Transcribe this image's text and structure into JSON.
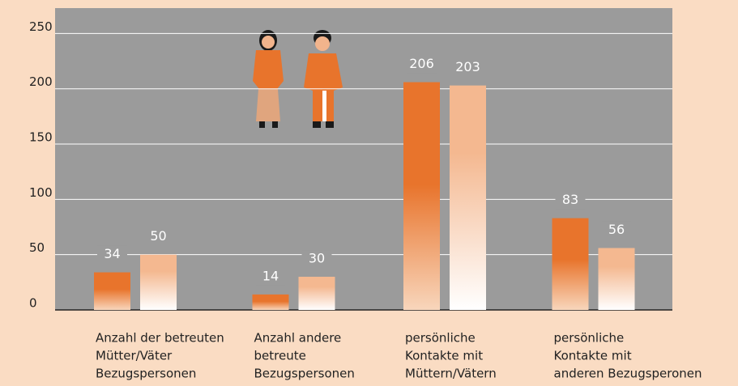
{
  "chart_data": {
    "type": "bar",
    "categories": [
      [
        "Anzahl der betreuten",
        "Mütter/Väter",
        "Bezugspersonen"
      ],
      [
        "Anzahl andere",
        "betreute",
        "Bezugspersonen"
      ],
      [
        "persönliche",
        "Kontakte mit",
        "Müttern/Vätern"
      ],
      [
        "persönliche",
        "Kontakte mit",
        "anderen Bezugsperonen"
      ]
    ],
    "series": [
      {
        "color": "#e8742c",
        "values": [
          34,
          14,
          206,
          83
        ]
      },
      {
        "color": "#f4b890",
        "values": [
          50,
          30,
          203,
          56
        ]
      }
    ],
    "ylim": [
      0,
      273
    ],
    "yticks": [
      0,
      50,
      100,
      150,
      200,
      250
    ],
    "grid": true
  }
}
